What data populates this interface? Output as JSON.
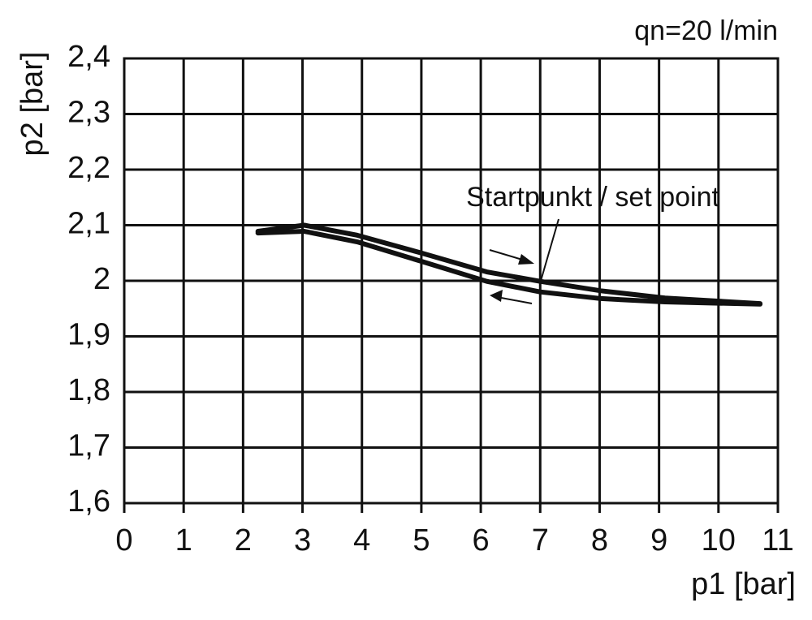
{
  "chart_data": {
    "type": "line",
    "annotations": [
      "qn=20 l/min",
      "Startpunkt / set point"
    ],
    "xlabel": "p1 [bar]",
    "ylabel": "p2 [bar]",
    "series": [
      {
        "color": "#111111",
        "x": [
          2.25,
          3.03,
          3.92,
          5.0,
          6.1,
          7.0,
          8.02,
          9.1,
          10.7
        ],
        "values": [
          2.089,
          2.1,
          2.082,
          2.05,
          2.016,
          1.999,
          1.982,
          1.969,
          1.959
        ]
      },
      {
        "color": "#111111",
        "x": [
          2.25,
          3.03,
          3.92,
          5.0,
          6.1,
          7.0,
          8.02,
          9.1,
          10.7
        ],
        "values": [
          2.086,
          2.089,
          2.07,
          2.035,
          1.999,
          1.98,
          1.968,
          1.962,
          1.958
        ]
      }
    ],
    "xlim": [
      0,
      11
    ],
    "xticks": [
      0,
      1,
      2,
      3,
      4,
      5,
      6,
      7,
      8,
      9,
      10,
      11
    ],
    "ylim": [
      1.6,
      2.4
    ],
    "yticks": [
      {
        "value": 1.6,
        "label": "1,6"
      },
      {
        "value": 1.7,
        "label": "1,7"
      },
      {
        "value": 1.8,
        "label": "1,8"
      },
      {
        "value": 1.9,
        "label": "1,9"
      },
      2,
      {
        "value": 2.1,
        "label": "2,1"
      },
      {
        "value": 2.2,
        "label": "2,2"
      },
      {
        "value": 2.3,
        "label": "2,3"
      },
      {
        "value": 2.4,
        "label": "2,4"
      }
    ],
    "grid": true
  }
}
